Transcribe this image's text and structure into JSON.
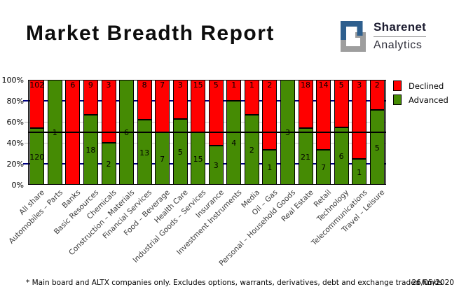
{
  "header": {
    "title": "Market Breadth Report",
    "logo": {
      "name": "Sharenet",
      "sub": "Analytics",
      "navy": "#2e5f8e",
      "gray": "#9e9e9e"
    }
  },
  "chart_data": {
    "type": "bar",
    "stacked": true,
    "stack_mode": "percent",
    "categories": [
      "All share",
      "Automobiles – Parts",
      "Banks",
      "Basic Resources",
      "Chemicals",
      "Construction – Materials",
      "Financial Services",
      "Food – Beverage",
      "Health Care",
      "Industrial Goods – Services",
      "Insurance",
      "Investment Instruments",
      "Media",
      "Oil – Gas",
      "Personal – Household Goods",
      "Real Estate",
      "Retail",
      "Technology",
      "Telecommunications",
      "Travel – Leisure"
    ],
    "series": [
      {
        "name": "Declined",
        "color": "#ff0000",
        "values": [
          102,
          0,
          6,
          9,
          3,
          0,
          8,
          7,
          3,
          15,
          5,
          1,
          1,
          2,
          0,
          18,
          14,
          5,
          3,
          2
        ]
      },
      {
        "name": "Advanced",
        "color": "#458b04",
        "values": [
          120,
          1,
          0,
          18,
          2,
          6,
          13,
          7,
          5,
          15,
          3,
          4,
          2,
          1,
          3,
          21,
          7,
          6,
          1,
          5
        ]
      }
    ],
    "y_ticks": [
      "100%",
      "80%",
      "60%",
      "40%",
      "20%",
      "0%"
    ],
    "ylim": [
      0,
      100
    ],
    "legend_position": "top-right",
    "gridlines": {
      "navy_pct": [
        80,
        20
      ],
      "gray_pct": [
        60,
        40
      ],
      "black_pct": [
        50
      ]
    },
    "grid_colors": {
      "navy": "#000080",
      "gray": "#c4c4c4",
      "black": "#000000"
    }
  },
  "footer": {
    "note": "* Main board and ALTX companies only. Excludes options, warrants, derivatives, debt and exchange traded funds",
    "date": "26/05/2020"
  }
}
